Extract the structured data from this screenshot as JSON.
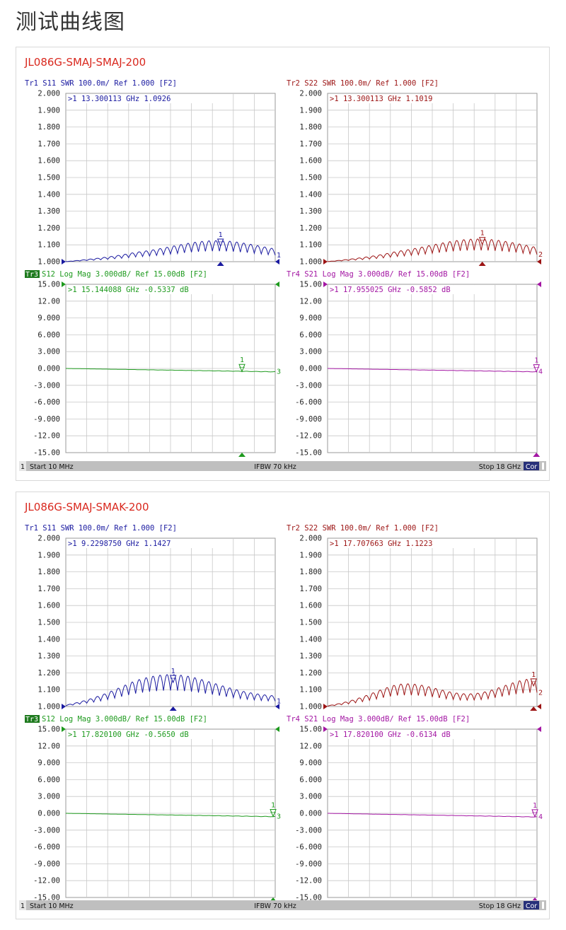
{
  "page": {
    "title": "测试曲线图"
  },
  "colors": {
    "s11": "#1a1aa0",
    "s22": "#9c1414",
    "s12": "#1e9a1e",
    "s21": "#a316a3",
    "panel_title": "#d9281e",
    "grid": "#c8c8c8",
    "status_bg": "#bfbfbf"
  },
  "chart_data": [
    {
      "name": "JL086G-SMAJ-SMAJ-200",
      "status": {
        "channel": "1",
        "start": "Start 10 MHz",
        "ifbw": "IFBW 70 kHz",
        "stop": "Stop 18 GHz",
        "cor": "Cor"
      },
      "traces": [
        {
          "id": "tr1",
          "type": "line",
          "trace_label": "Tr1",
          "param": "S11",
          "format": "SWR",
          "header": "Tr1  S11  SWR 100.0m/ Ref 1.000 [F2]",
          "marker_readout": ">1  13.300113 GHz  1.0926",
          "marker": {
            "x_ghz": 13.300113,
            "value": 1.0926,
            "label": "1"
          },
          "end_label": "1",
          "y_ticks": [
            "2.000",
            "1.900",
            "1.800",
            "1.700",
            "1.600",
            "1.500",
            "1.400",
            "1.300",
            "1.200",
            "1.100",
            "1.000"
          ],
          "ylim": [
            1.0,
            2.0
          ],
          "xlim_ghz": [
            0.01,
            18
          ],
          "profile": {
            "shape": "hump",
            "amp": 0.085,
            "peak": 0.72,
            "width": 0.3,
            "base": 0.04,
            "cycles": 30
          }
        },
        {
          "id": "tr2",
          "type": "line",
          "trace_label": "Tr2",
          "param": "S22",
          "format": "SWR",
          "header": "Tr2  S22  SWR 100.0m/ Ref 1.000 [F2]",
          "marker_readout": ">1  13.300113 GHz  1.1019",
          "marker": {
            "x_ghz": 13.300113,
            "value": 1.1019,
            "label": "1"
          },
          "end_label": "2",
          "y_ticks": [
            "2.000",
            "1.900",
            "1.800",
            "1.700",
            "1.600",
            "1.500",
            "1.400",
            "1.300",
            "1.200",
            "1.100",
            "1.000"
          ],
          "ylim": [
            1.0,
            2.0
          ],
          "xlim_ghz": [
            0.01,
            18
          ],
          "profile": {
            "shape": "hump",
            "amp": 0.095,
            "peak": 0.72,
            "width": 0.32,
            "base": 0.04,
            "cycles": 30
          }
        },
        {
          "id": "tr3",
          "type": "line",
          "trace_label": "Tr3",
          "param": "S12",
          "format": "Log Mag",
          "header": "Tr3  S12  Log Mag 3.000dB/ Ref 15.00dB [F2]",
          "marker_readout": ">1  15.144088 GHz  -0.5337  dB",
          "marker": {
            "x_ghz": 15.144088,
            "value": -0.5337,
            "label": "1"
          },
          "end_label": "3",
          "y_ticks": [
            "15.00",
            "12.00",
            "9.000",
            "6.000",
            "3.000",
            "0.000",
            "-3.000",
            "-6.000",
            "-9.000",
            "-12.00",
            "-15.00"
          ],
          "ylim": [
            -15,
            15
          ],
          "xlim_ghz": [
            0.01,
            18
          ],
          "profile": {
            "shape": "loss",
            "end": -0.6
          }
        },
        {
          "id": "tr4",
          "type": "line",
          "trace_label": "Tr4",
          "param": "S21",
          "format": "Log Mag",
          "header": "Tr4  S21  Log Mag 3.000dB/ Ref 15.00dB [F2]",
          "marker_readout": ">1  17.955025 GHz  -0.5852  dB",
          "marker": {
            "x_ghz": 17.955025,
            "value": -0.5852,
            "label": "1"
          },
          "end_label": "4",
          "y_ticks": [
            "15.00",
            "12.00",
            "9.000",
            "6.000",
            "3.000",
            "0.000",
            "-3.000",
            "-6.000",
            "-9.000",
            "-12.00",
            "-15.00"
          ],
          "ylim": [
            -15,
            15
          ],
          "xlim_ghz": [
            0.01,
            18
          ],
          "profile": {
            "shape": "loss",
            "end": -0.6
          }
        }
      ]
    },
    {
      "name": "JL086G-SMAJ-SMAK-200",
      "status": {
        "channel": "1",
        "start": "Start 10 MHz",
        "ifbw": "IFBW 70 kHz",
        "stop": "Stop 18 GHz",
        "cor": "Cor"
      },
      "traces": [
        {
          "id": "tr1",
          "type": "line",
          "trace_label": "Tr1",
          "param": "S11",
          "format": "SWR",
          "header": "Tr1  S11  SWR 100.0m/ Ref 1.000 [F2]",
          "marker_readout": ">1  9.2298750 GHz  1.1427",
          "marker": {
            "x_ghz": 9.229875,
            "value": 1.1427,
            "label": "1"
          },
          "end_label": "1",
          "y_ticks": [
            "2.000",
            "1.900",
            "1.800",
            "1.700",
            "1.600",
            "1.500",
            "1.400",
            "1.300",
            "1.200",
            "1.100",
            "1.000"
          ],
          "ylim": [
            1.0,
            2.0
          ],
          "xlim_ghz": [
            0.01,
            18
          ],
          "profile": {
            "shape": "hump",
            "amp": 0.135,
            "peak": 0.5,
            "width": 0.3,
            "base": 0.055,
            "cycles": 30
          }
        },
        {
          "id": "tr2",
          "type": "line",
          "trace_label": "Tr2",
          "param": "S22",
          "format": "SWR",
          "header": "Tr2  S22  SWR 100.0m/ Ref 1.000 [F2]",
          "marker_readout": ">1  17.707663 GHz  1.1223",
          "marker": {
            "x_ghz": 17.707663,
            "value": 1.1223,
            "label": "1"
          },
          "end_label": "2",
          "y_ticks": [
            "2.000",
            "1.900",
            "1.800",
            "1.700",
            "1.600",
            "1.500",
            "1.400",
            "1.300",
            "1.200",
            "1.100",
            "1.000"
          ],
          "ylim": [
            1.0,
            2.0
          ],
          "xlim_ghz": [
            0.01,
            18
          ],
          "profile": {
            "shape": "double",
            "amp": 0.09,
            "peak": 0.38,
            "width": 0.22,
            "amp2": 0.12,
            "peak2": 0.99,
            "width2": 0.22,
            "base": 0.045,
            "cycles": 30
          }
        },
        {
          "id": "tr3",
          "type": "line",
          "trace_label": "Tr3",
          "param": "S12",
          "format": "Log Mag",
          "header": "Tr3  S12  Log Mag 3.000dB/ Ref 15.00dB [F2]",
          "marker_readout": ">1  17.820100 GHz  -0.5650  dB",
          "marker": {
            "x_ghz": 17.8201,
            "value": -0.565,
            "label": "1"
          },
          "end_label": "3",
          "y_ticks": [
            "15.00",
            "12.00",
            "9.000",
            "6.000",
            "3.000",
            "0.000",
            "-3.000",
            "-6.000",
            "-9.000",
            "-12.00",
            "-15.00"
          ],
          "ylim": [
            -15,
            15
          ],
          "xlim_ghz": [
            0.01,
            18
          ],
          "profile": {
            "shape": "loss",
            "end": -0.6
          }
        },
        {
          "id": "tr4",
          "type": "line",
          "trace_label": "Tr4",
          "param": "S21",
          "format": "Log Mag",
          "header": "Tr4  S21  Log Mag 3.000dB/ Ref 15.00dB [F2]",
          "marker_readout": ">1  17.820100 GHz  -0.6134  dB",
          "marker": {
            "x_ghz": 17.8201,
            "value": -0.6134,
            "label": "1"
          },
          "end_label": "4",
          "y_ticks": [
            "15.00",
            "12.00",
            "9.000",
            "6.000",
            "3.000",
            "0.000",
            "-3.000",
            "-6.000",
            "-9.000",
            "-12.00",
            "-15.00"
          ],
          "ylim": [
            -15,
            15
          ],
          "xlim_ghz": [
            0.01,
            18
          ],
          "profile": {
            "shape": "loss",
            "end": -0.65
          }
        }
      ]
    }
  ]
}
